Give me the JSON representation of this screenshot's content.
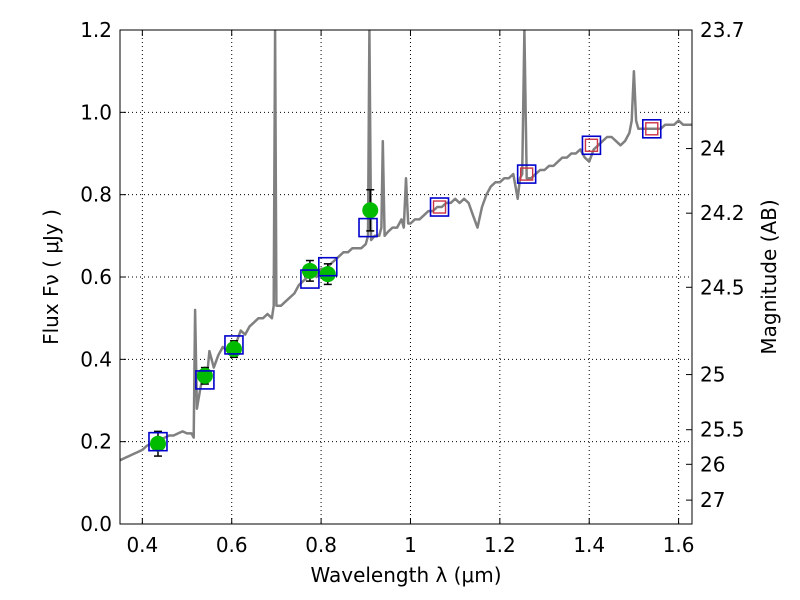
{
  "chart_data": {
    "type": "scatter",
    "title": "",
    "xlabel": "Wavelength  λ (μm)",
    "ylabel": "Flux  Fν  ( μJy )",
    "y2label": "Magnitude (AB)",
    "xlim": [
      0.35,
      1.63
    ],
    "ylim": [
      0.0,
      1.2
    ],
    "grid": true,
    "x_ticks": [
      {
        "value": 0.4,
        "label": "0.4"
      },
      {
        "value": 0.6,
        "label": "0.6"
      },
      {
        "value": 0.8,
        "label": "0.8"
      },
      {
        "value": 1.0,
        "label": "1"
      },
      {
        "value": 1.2,
        "label": "1.2"
      },
      {
        "value": 1.4,
        "label": "1.4"
      },
      {
        "value": 1.6,
        "label": "1.6"
      }
    ],
    "y_ticks": [
      {
        "value": 0.0,
        "label": "0.0"
      },
      {
        "value": 0.2,
        "label": "0.2"
      },
      {
        "value": 0.4,
        "label": "0.4"
      },
      {
        "value": 0.6,
        "label": "0.6"
      },
      {
        "value": 0.8,
        "label": "0.8"
      },
      {
        "value": 1.0,
        "label": "1.0"
      },
      {
        "value": 1.2,
        "label": "1.2"
      }
    ],
    "y2_ticks": [
      {
        "flux": 1.2,
        "label": "23.7"
      },
      {
        "flux": 0.912,
        "label": "24"
      },
      {
        "flux": 0.755,
        "label": "24.2"
      },
      {
        "flux": 0.575,
        "label": "24.5"
      },
      {
        "flux": 0.363,
        "label": "25"
      },
      {
        "flux": 0.229,
        "label": "25.5"
      },
      {
        "flux": 0.145,
        "label": "26"
      },
      {
        "flux": 0.058,
        "label": "27"
      }
    ],
    "colors": {
      "spectrum": "#808080",
      "observed": "#00bb00",
      "model_box": "#0000cc",
      "ir_model_box": "#cc3344",
      "errorbar": "#000000"
    },
    "series": [
      {
        "kind": "spectrum",
        "points": [
          [
            0.35,
            0.155
          ],
          [
            0.36,
            0.16
          ],
          [
            0.37,
            0.165
          ],
          [
            0.38,
            0.17
          ],
          [
            0.39,
            0.175
          ],
          [
            0.4,
            0.18
          ],
          [
            0.41,
            0.19
          ],
          [
            0.42,
            0.195
          ],
          [
            0.43,
            0.2
          ],
          [
            0.44,
            0.205
          ],
          [
            0.45,
            0.21
          ],
          [
            0.46,
            0.215
          ],
          [
            0.47,
            0.215
          ],
          [
            0.48,
            0.22
          ],
          [
            0.49,
            0.225
          ],
          [
            0.5,
            0.22
          ],
          [
            0.51,
            0.22
          ],
          [
            0.515,
            0.21
          ],
          [
            0.518,
            0.52
          ],
          [
            0.522,
            0.28
          ],
          [
            0.53,
            0.33
          ],
          [
            0.54,
            0.38
          ],
          [
            0.545,
            0.36
          ],
          [
            0.55,
            0.42
          ],
          [
            0.56,
            0.38
          ],
          [
            0.57,
            0.41
          ],
          [
            0.58,
            0.43
          ],
          [
            0.59,
            0.42
          ],
          [
            0.6,
            0.42
          ],
          [
            0.61,
            0.44
          ],
          [
            0.62,
            0.47
          ],
          [
            0.63,
            0.46
          ],
          [
            0.64,
            0.48
          ],
          [
            0.65,
            0.49
          ],
          [
            0.66,
            0.5
          ],
          [
            0.67,
            0.5
          ],
          [
            0.68,
            0.51
          ],
          [
            0.69,
            0.5
          ],
          [
            0.694,
            0.53
          ],
          [
            0.697,
            1.2
          ],
          [
            0.7,
            0.53
          ],
          [
            0.71,
            0.53
          ],
          [
            0.72,
            0.54
          ],
          [
            0.73,
            0.55
          ],
          [
            0.74,
            0.56
          ],
          [
            0.75,
            0.58
          ],
          [
            0.76,
            0.59
          ],
          [
            0.77,
            0.6
          ],
          [
            0.78,
            0.61
          ],
          [
            0.79,
            0.6
          ],
          [
            0.8,
            0.62
          ],
          [
            0.81,
            0.62
          ],
          [
            0.82,
            0.63
          ],
          [
            0.83,
            0.64
          ],
          [
            0.84,
            0.65
          ],
          [
            0.85,
            0.66
          ],
          [
            0.86,
            0.66
          ],
          [
            0.87,
            0.67
          ],
          [
            0.88,
            0.67
          ],
          [
            0.89,
            0.67
          ],
          [
            0.9,
            0.68
          ],
          [
            0.905,
            0.7
          ],
          [
            0.908,
            1.2
          ],
          [
            0.912,
            0.69
          ],
          [
            0.92,
            0.7
          ],
          [
            0.93,
            0.7
          ],
          [
            0.935,
            0.72
          ],
          [
            0.938,
            0.93
          ],
          [
            0.942,
            0.7
          ],
          [
            0.95,
            0.71
          ],
          [
            0.96,
            0.72
          ],
          [
            0.97,
            0.72
          ],
          [
            0.98,
            0.74
          ],
          [
            0.985,
            0.72
          ],
          [
            0.99,
            0.84
          ],
          [
            0.995,
            0.73
          ],
          [
            1.0,
            0.73
          ],
          [
            1.01,
            0.74
          ],
          [
            1.02,
            0.74
          ],
          [
            1.03,
            0.75
          ],
          [
            1.04,
            0.76
          ],
          [
            1.05,
            0.76
          ],
          [
            1.06,
            0.77
          ],
          [
            1.07,
            0.77
          ],
          [
            1.08,
            0.78
          ],
          [
            1.09,
            0.78
          ],
          [
            1.1,
            0.79
          ],
          [
            1.11,
            0.78
          ],
          [
            1.12,
            0.79
          ],
          [
            1.13,
            0.78
          ],
          [
            1.14,
            0.75
          ],
          [
            1.15,
            0.72
          ],
          [
            1.16,
            0.77
          ],
          [
            1.17,
            0.8
          ],
          [
            1.18,
            0.82
          ],
          [
            1.19,
            0.83
          ],
          [
            1.2,
            0.83
          ],
          [
            1.21,
            0.84
          ],
          [
            1.22,
            0.84
          ],
          [
            1.23,
            0.85
          ],
          [
            1.235,
            0.82
          ],
          [
            1.24,
            0.79
          ],
          [
            1.245,
            0.84
          ],
          [
            1.25,
            0.85
          ],
          [
            1.255,
            1.2
          ],
          [
            1.26,
            0.84
          ],
          [
            1.27,
            0.84
          ],
          [
            1.28,
            0.85
          ],
          [
            1.29,
            0.86
          ],
          [
            1.3,
            0.86
          ],
          [
            1.31,
            0.87
          ],
          [
            1.32,
            0.87
          ],
          [
            1.33,
            0.88
          ],
          [
            1.34,
            0.89
          ],
          [
            1.35,
            0.89
          ],
          [
            1.36,
            0.9
          ],
          [
            1.37,
            0.9
          ],
          [
            1.38,
            0.91
          ],
          [
            1.39,
            0.89
          ],
          [
            1.4,
            0.88
          ],
          [
            1.41,
            0.91
          ],
          [
            1.42,
            0.92
          ],
          [
            1.43,
            0.93
          ],
          [
            1.44,
            0.94
          ],
          [
            1.45,
            0.94
          ],
          [
            1.46,
            0.93
          ],
          [
            1.47,
            0.92
          ],
          [
            1.48,
            0.93
          ],
          [
            1.49,
            0.95
          ],
          [
            1.495,
            0.98
          ],
          [
            1.5,
            1.1
          ],
          [
            1.505,
            0.98
          ],
          [
            1.51,
            0.96
          ],
          [
            1.52,
            0.96
          ],
          [
            1.53,
            0.96
          ],
          [
            1.54,
            0.96
          ],
          [
            1.55,
            0.96
          ],
          [
            1.56,
            0.96
          ],
          [
            1.57,
            0.97
          ],
          [
            1.58,
            0.97
          ],
          [
            1.59,
            0.97
          ],
          [
            1.6,
            0.98
          ],
          [
            1.61,
            0.97
          ],
          [
            1.62,
            0.97
          ],
          [
            1.63,
            0.97
          ]
        ]
      },
      {
        "kind": "observed",
        "points": [
          {
            "x": 0.435,
            "y": 0.195,
            "err": 0.03
          },
          {
            "x": 0.54,
            "y": 0.36,
            "err": 0.02
          },
          {
            "x": 0.605,
            "y": 0.425,
            "err": 0.02
          },
          {
            "x": 0.775,
            "y": 0.615,
            "err": 0.025
          },
          {
            "x": 0.815,
            "y": 0.607,
            "err": 0.025
          },
          {
            "x": 0.91,
            "y": 0.762,
            "err": 0.05
          }
        ]
      },
      {
        "kind": "model_optical",
        "points": [
          {
            "x": 0.435,
            "y": 0.2
          },
          {
            "x": 0.54,
            "y": 0.35
          },
          {
            "x": 0.605,
            "y": 0.435
          },
          {
            "x": 0.775,
            "y": 0.595
          },
          {
            "x": 0.815,
            "y": 0.625
          },
          {
            "x": 0.905,
            "y": 0.72
          }
        ]
      },
      {
        "kind": "model_ir",
        "points": [
          {
            "x": 1.065,
            "y": 0.77
          },
          {
            "x": 1.26,
            "y": 0.85
          },
          {
            "x": 1.405,
            "y": 0.92
          },
          {
            "x": 1.54,
            "y": 0.96
          }
        ]
      }
    ]
  }
}
